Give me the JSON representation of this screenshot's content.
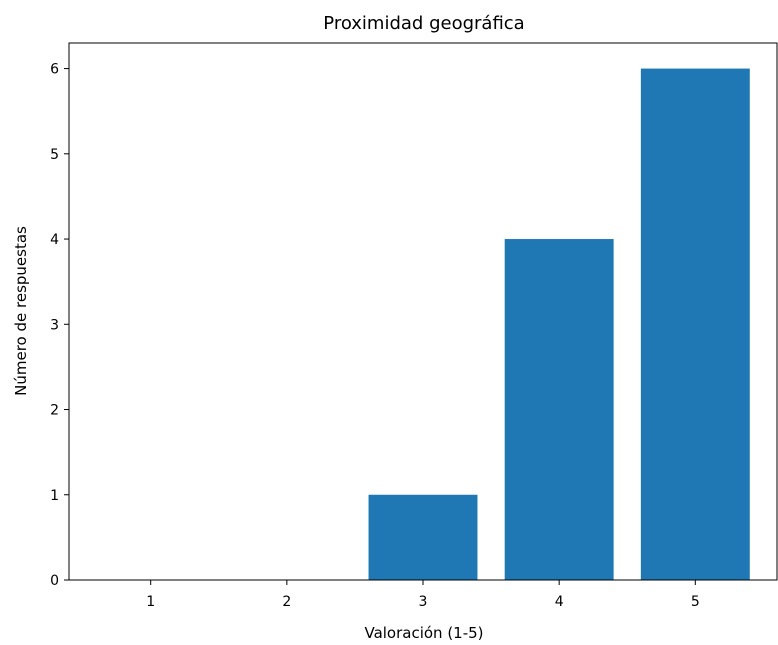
{
  "chart_data": {
    "type": "bar",
    "title": "Proximidad geográfica",
    "xlabel": "Valoración (1-5)",
    "ylabel": "Número de respuestas",
    "categories": [
      "1",
      "2",
      "3",
      "4",
      "5"
    ],
    "values": [
      0,
      0,
      1,
      4,
      6
    ],
    "yticks": [
      "0",
      "1",
      "2",
      "3",
      "4",
      "5",
      "6"
    ],
    "ylim": [
      0,
      6.3
    ],
    "xlim": [
      0.4,
      5.6
    ],
    "bar_color": "#1f77b4",
    "grid": false
  }
}
